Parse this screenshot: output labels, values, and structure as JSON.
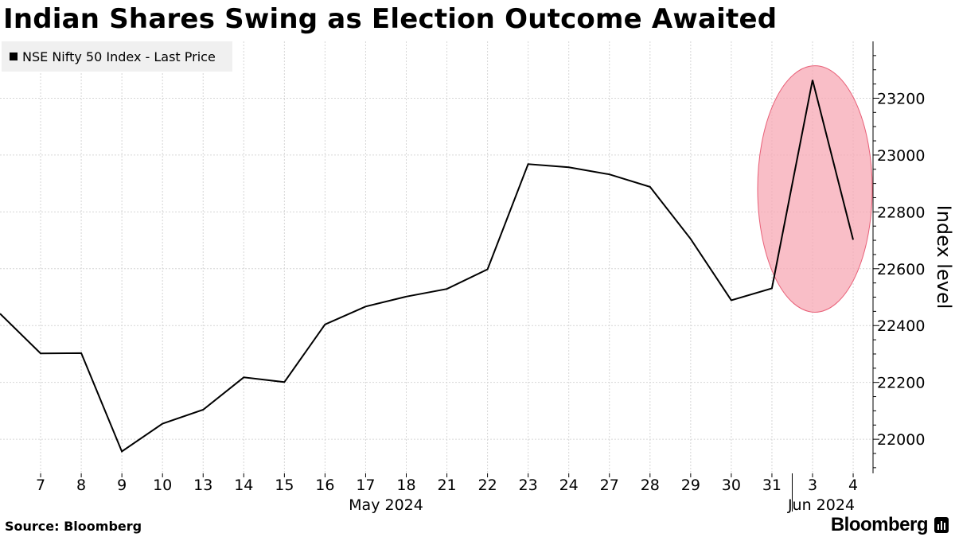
{
  "title": "Indian Shares Swing as Election Outcome Awaited",
  "source": "Source: Bloomberg",
  "brand": "Bloomberg",
  "chart_data": {
    "type": "line",
    "legend": {
      "entries": [
        "NSE Nifty 50 Index - Last Price"
      ],
      "placement": "top-left"
    },
    "series": [
      {
        "name": "NSE Nifty 50 Index - Last Price",
        "color": "#000000",
        "x": [
          "2024-05-06",
          "2024-05-07",
          "2024-05-08",
          "2024-05-09",
          "2024-05-10",
          "2024-05-13",
          "2024-05-14",
          "2024-05-15",
          "2024-05-16",
          "2024-05-17",
          "2024-05-18",
          "2024-05-21",
          "2024-05-22",
          "2024-05-23",
          "2024-05-24",
          "2024-05-27",
          "2024-05-28",
          "2024-05-29",
          "2024-05-30",
          "2024-05-31",
          "2024-06-03",
          "2024-06-04"
        ],
        "values": [
          22442,
          22302,
          22303,
          21957,
          22055,
          22104,
          22218,
          22201,
          22404,
          22467,
          22502,
          22529,
          22598,
          22968,
          22957,
          22932,
          22888,
          22705,
          22489,
          22531,
          23264,
          22702
        ]
      }
    ],
    "x_tick_labels": [
      "7",
      "8",
      "9",
      "10",
      "13",
      "14",
      "15",
      "16",
      "17",
      "18",
      "21",
      "22",
      "23",
      "24",
      "27",
      "28",
      "29",
      "30",
      "31",
      "3",
      "4"
    ],
    "x_group_labels": [
      "May 2024",
      "Jun 2024"
    ],
    "yticks": [
      22000,
      22200,
      22400,
      22600,
      22800,
      23000,
      23200
    ],
    "ylim": [
      21880,
      23400
    ],
    "ylabel": "Index level",
    "y_axis_side": "right",
    "grid": true,
    "annotation": {
      "shape": "ellipse",
      "color": "#f7a8b4",
      "highlights": [
        "2024-05-31",
        "2024-06-03",
        "2024-06-04"
      ]
    }
  }
}
